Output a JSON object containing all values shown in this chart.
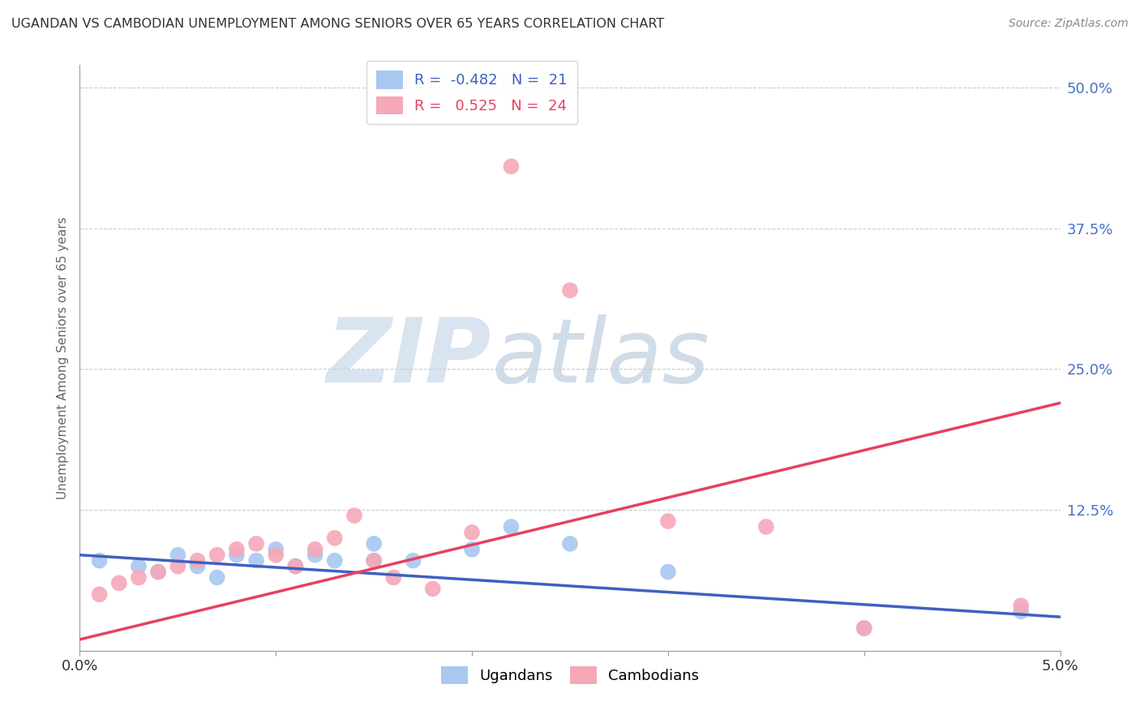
{
  "title": "UGANDAN VS CAMBODIAN UNEMPLOYMENT AMONG SENIORS OVER 65 YEARS CORRELATION CHART",
  "source": "Source: ZipAtlas.com",
  "ylabel": "Unemployment Among Seniors over 65 years",
  "ugandan_R": -0.482,
  "ugandan_N": 21,
  "cambodian_R": 0.525,
  "cambodian_N": 24,
  "ugandan_color": "#A8C8F0",
  "cambodian_color": "#F5A8B8",
  "ugandan_line_color": "#4060C0",
  "cambodian_line_color": "#E84060",
  "background_color": "#ffffff",
  "ytick_positions": [
    0.0,
    0.125,
    0.25,
    0.375,
    0.5
  ],
  "ytick_labels_right": [
    "",
    "12.5%",
    "25.0%",
    "37.5%",
    "50.0%"
  ],
  "ugandan_x": [
    0.001,
    0.003,
    0.004,
    0.005,
    0.006,
    0.007,
    0.008,
    0.009,
    0.01,
    0.011,
    0.012,
    0.013,
    0.015,
    0.017,
    0.02,
    0.022,
    0.025,
    0.03,
    0.015,
    0.04,
    0.048
  ],
  "ugandan_y": [
    0.08,
    0.075,
    0.07,
    0.085,
    0.075,
    0.065,
    0.085,
    0.08,
    0.09,
    0.075,
    0.085,
    0.08,
    0.095,
    0.08,
    0.09,
    0.11,
    0.095,
    0.07,
    0.08,
    0.02,
    0.035
  ],
  "cambodian_x": [
    0.001,
    0.002,
    0.003,
    0.004,
    0.005,
    0.006,
    0.007,
    0.008,
    0.009,
    0.01,
    0.011,
    0.012,
    0.013,
    0.014,
    0.015,
    0.016,
    0.018,
    0.02,
    0.022,
    0.025,
    0.03,
    0.035,
    0.04,
    0.048
  ],
  "cambodian_y": [
    0.05,
    0.06,
    0.065,
    0.07,
    0.075,
    0.08,
    0.085,
    0.09,
    0.095,
    0.085,
    0.075,
    0.09,
    0.1,
    0.12,
    0.08,
    0.065,
    0.055,
    0.105,
    0.43,
    0.32,
    0.115,
    0.11,
    0.02,
    0.04
  ]
}
